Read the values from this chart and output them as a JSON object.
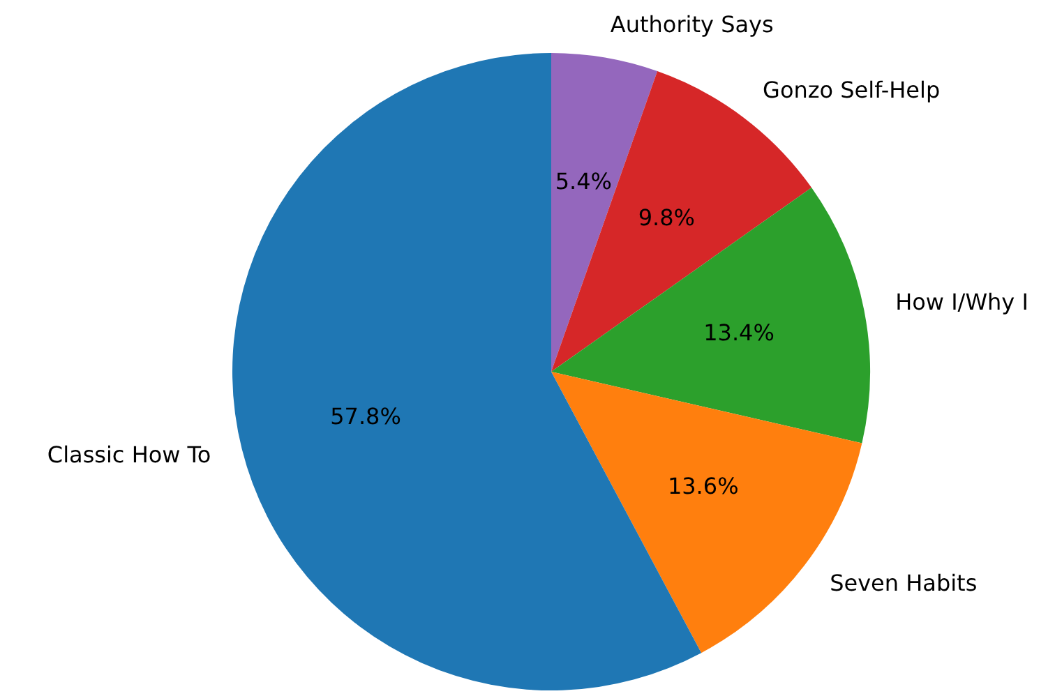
{
  "chart_data": {
    "type": "pie",
    "categories": [
      "Authority Says",
      "Gonzo Self-Help",
      "How I/Why I",
      "Seven Habits",
      "Classic How To"
    ],
    "values": [
      5.4,
      9.8,
      13.4,
      13.6,
      57.8
    ],
    "colors": [
      "#9467bd",
      "#d62728",
      "#2ca02c",
      "#ff7f0e",
      "#1f77b4"
    ],
    "value_labels": [
      "5.4%",
      "9.8%",
      "13.4%",
      "13.6%",
      "57.8%"
    ],
    "legend": false
  }
}
